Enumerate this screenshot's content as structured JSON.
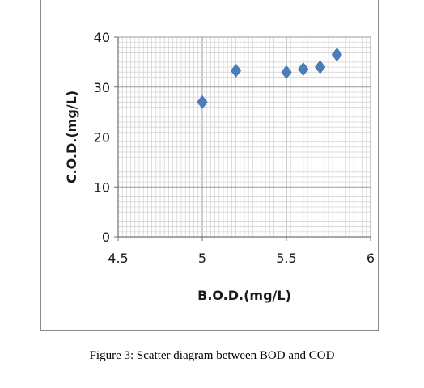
{
  "chart_data": {
    "type": "scatter",
    "title": "",
    "xlabel": "B.O.D.(mg/L)",
    "ylabel": "C.O.D.(mg/L)",
    "xlim": [
      4.5,
      6
    ],
    "ylim": [
      0,
      40
    ],
    "x_ticks": [
      "4.5",
      "5",
      "5.5",
      "6"
    ],
    "y_ticks": [
      "0",
      "10",
      "20",
      "30",
      "40"
    ],
    "grid": true,
    "marker_color": "#4a7ebb",
    "marker": "diamond",
    "points": [
      {
        "x": 5.0,
        "y": 27.0
      },
      {
        "x": 5.2,
        "y": 33.3
      },
      {
        "x": 5.5,
        "y": 33.0
      },
      {
        "x": 5.6,
        "y": 33.6
      },
      {
        "x": 5.7,
        "y": 34.0
      },
      {
        "x": 5.8,
        "y": 36.5
      }
    ]
  },
  "caption": "Figure 3: Scatter diagram between BOD and COD"
}
